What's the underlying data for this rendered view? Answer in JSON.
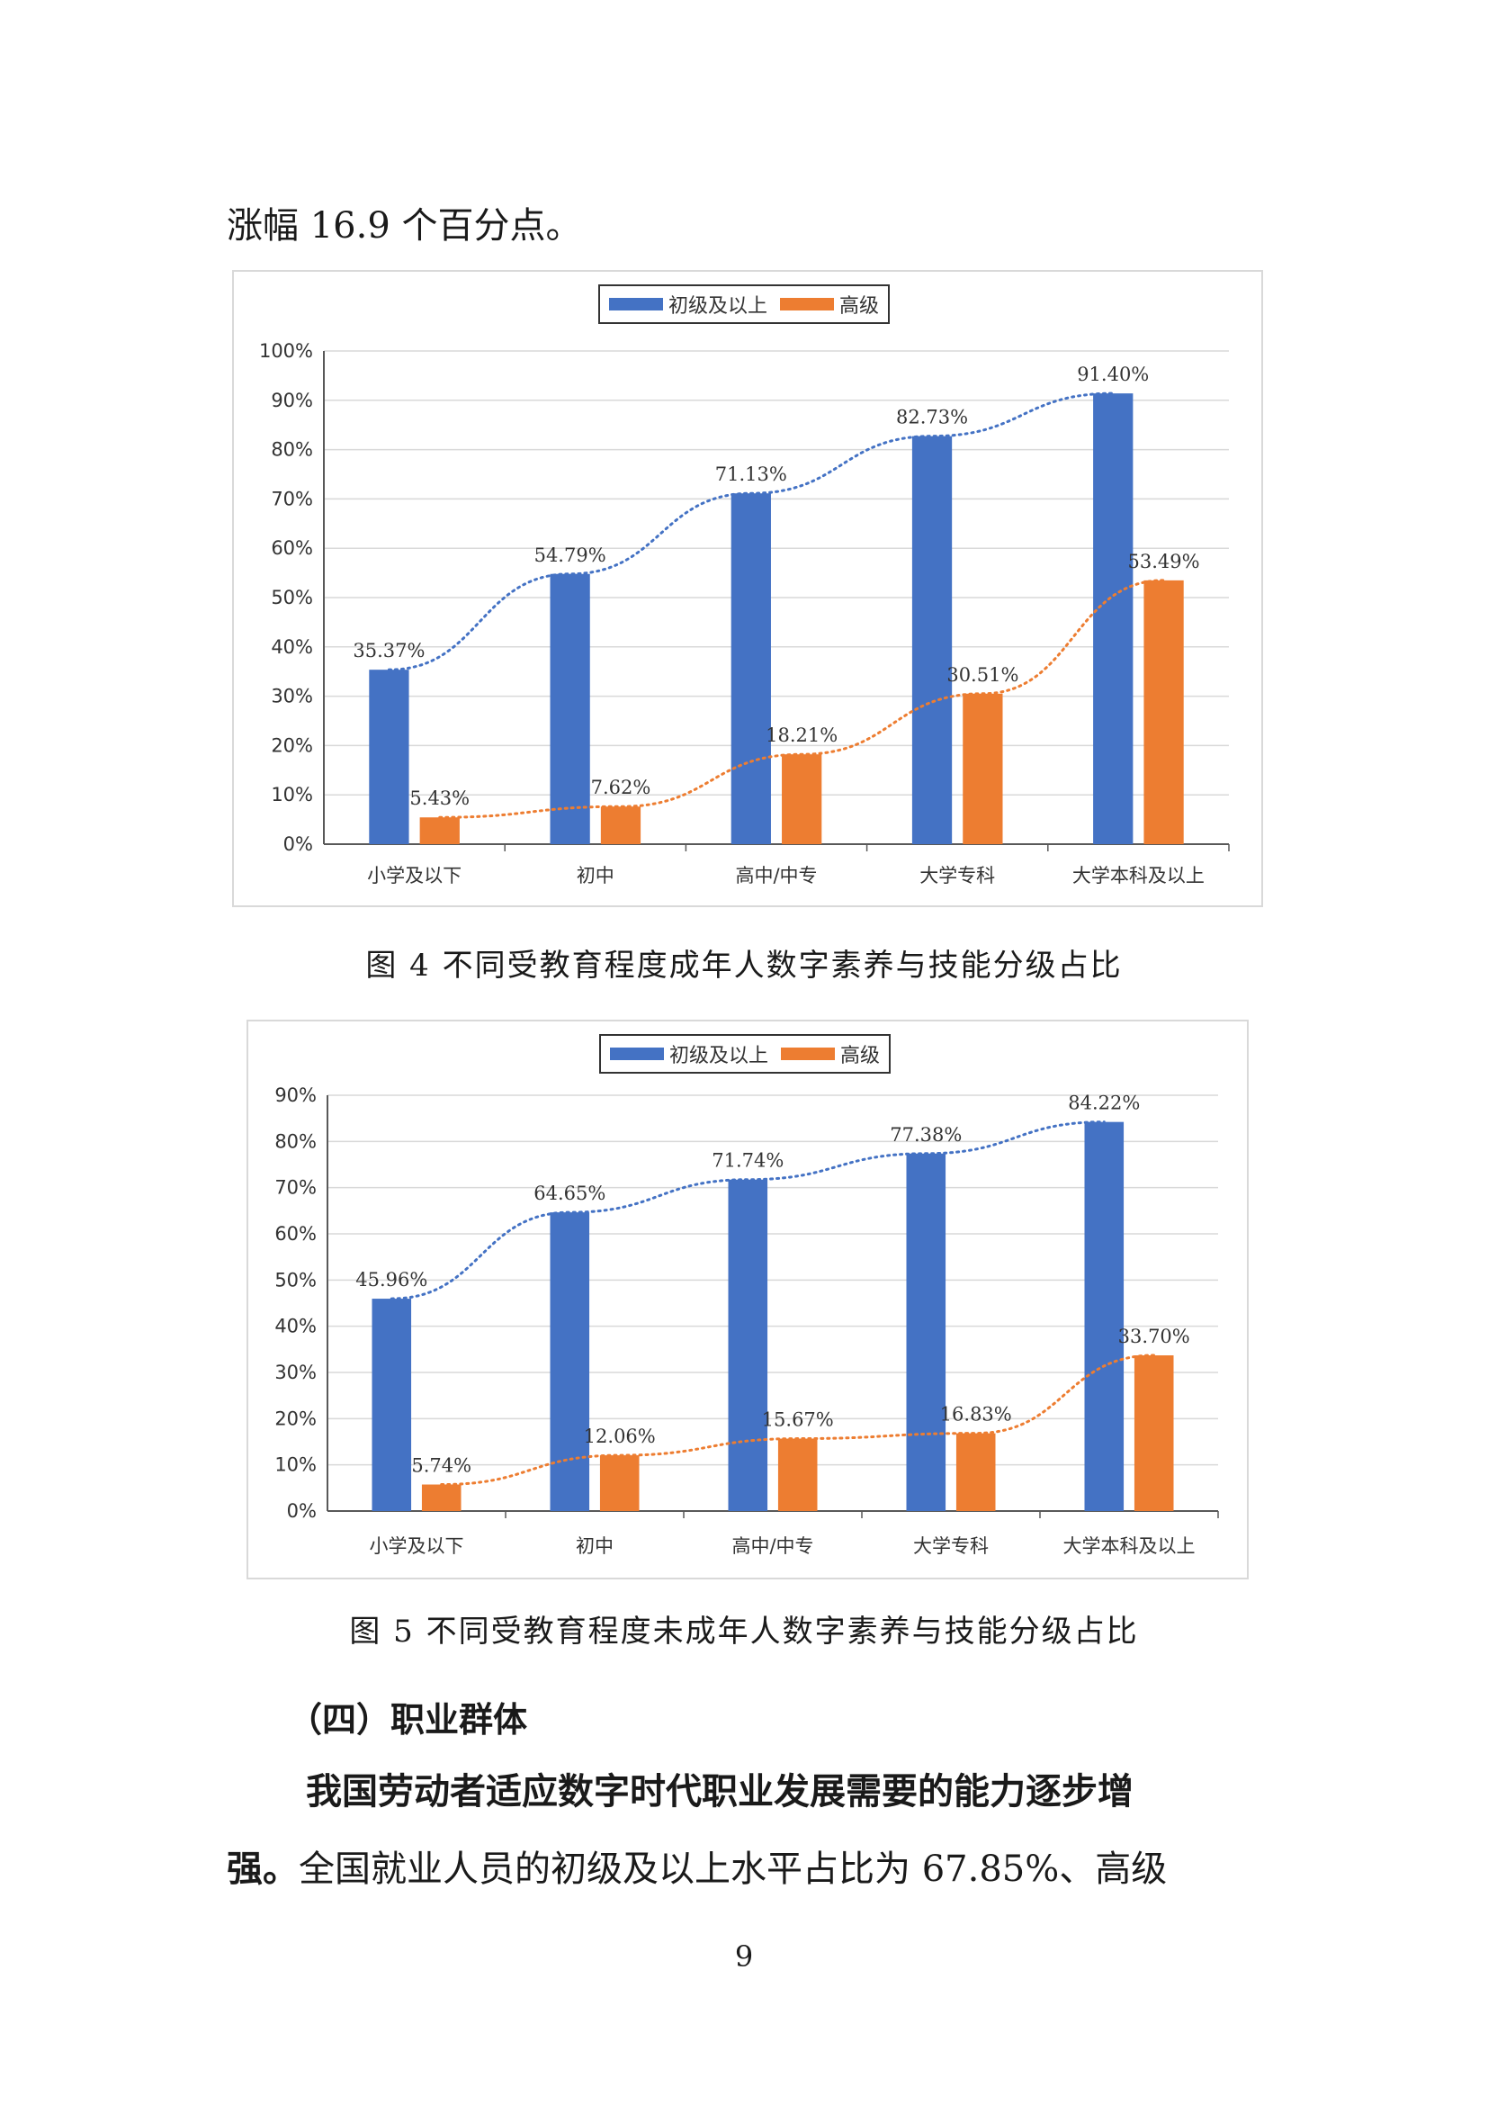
{
  "intro_line": "涨幅 16.9 个百分点。",
  "legend": {
    "series1": "初级及以上",
    "series2": "高级",
    "color1": "#4472c4",
    "color2": "#ed7d31"
  },
  "figure4": {
    "caption": "图 4  不同受教育程度成年人数字素养与技能分级占比"
  },
  "figure5": {
    "caption": "图 5  不同受教育程度未成年人数字素养与技能分级占比"
  },
  "chart_data": [
    {
      "type": "bar",
      "categories": [
        "小学及以下",
        "初中",
        "高中/中专",
        "大学专科",
        "大学本科及以上"
      ],
      "series": [
        {
          "name": "初级及以上",
          "values": [
            35.37,
            54.79,
            71.13,
            82.73,
            91.4
          ],
          "labels": [
            "35.37%",
            "54.79%",
            "71.13%",
            "82.73%",
            "91.40%"
          ],
          "color": "#4472c4"
        },
        {
          "name": "高级",
          "values": [
            5.43,
            7.62,
            18.21,
            30.51,
            53.49
          ],
          "labels": [
            "5.43%",
            "7.62%",
            "18.21%",
            "30.51%",
            "53.49%"
          ],
          "color": "#ed7d31"
        }
      ],
      "ylim": [
        0,
        100
      ],
      "yticks": [
        "0%",
        "10%",
        "20%",
        "30%",
        "40%",
        "50%",
        "60%",
        "70%",
        "80%",
        "90%",
        "100%"
      ],
      "trendlines": "dotted",
      "grid": true,
      "legend_position": "top"
    },
    {
      "type": "bar",
      "categories": [
        "小学及以下",
        "初中",
        "高中/中专",
        "大学专科",
        "大学本科及以上"
      ],
      "series": [
        {
          "name": "初级及以上",
          "values": [
            45.96,
            64.65,
            71.74,
            77.38,
            84.22
          ],
          "labels": [
            "45.96%",
            "64.65%",
            "71.74%",
            "77.38%",
            "84.22%"
          ],
          "color": "#4472c4"
        },
        {
          "name": "高级",
          "values": [
            5.74,
            12.06,
            15.67,
            16.83,
            33.7
          ],
          "labels": [
            "5.74%",
            "12.06%",
            "15.67%",
            "16.83%",
            "33.70%"
          ],
          "color": "#ed7d31"
        }
      ],
      "ylim": [
        0,
        90
      ],
      "yticks": [
        "0%",
        "10%",
        "20%",
        "30%",
        "40%",
        "50%",
        "60%",
        "70%",
        "80%",
        "90%"
      ],
      "trendlines": "dotted",
      "grid": true,
      "legend_position": "top"
    }
  ],
  "section_heading": "（四）职业群体",
  "para_bold": "我国劳动者适应数字时代职业发展需要的能力逐步增强。",
  "para_line2_bold": "强。",
  "para_line2_rest": "全国就业人员的初级及以上水平占比为 67.85%、高级",
  "para_line1_bold": "我国劳动者适应数字时代职业发展需要的能力逐步增",
  "page_number": "9"
}
